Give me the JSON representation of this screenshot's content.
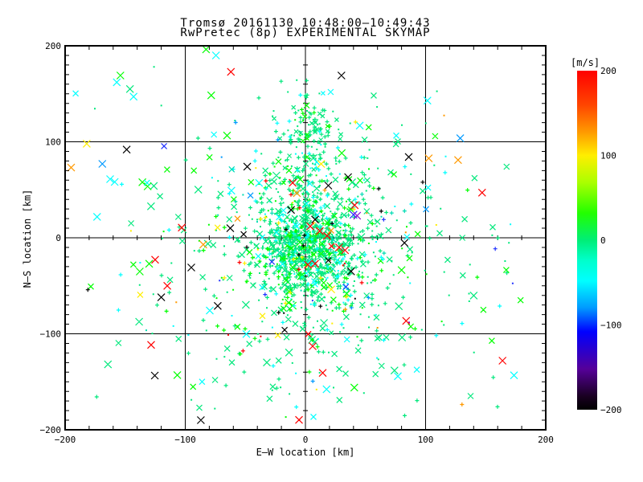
{
  "chart_data": {
    "type": "scatter",
    "title": "Tromsø 20161130 10:48:00–10:49:43",
    "subtitle": "RwPretec (8p) EXPERIMENTAL SKYMAP",
    "xlabel": "E–W location [km]",
    "ylabel": "N–S location [km]",
    "xlim": [
      -200,
      200
    ],
    "ylim": [
      -200,
      200
    ],
    "xticks": [
      -200,
      -100,
      0,
      100,
      200
    ],
    "yticks": [
      -200,
      -100,
      0,
      100,
      200
    ],
    "grid": [
      -100,
      0,
      100
    ],
    "axes_through_origin": true,
    "frame_color": "#000000",
    "background": "#ffffff",
    "colorbar": {
      "title": "[m/s]",
      "min": -200,
      "max": 200,
      "ticks": [
        200,
        100,
        0,
        -100,
        -200
      ],
      "stops": [
        [
          0.0,
          "#ff0000"
        ],
        [
          0.1,
          "#ff4400"
        ],
        [
          0.18,
          "#ff9900"
        ],
        [
          0.25,
          "#ffee00"
        ],
        [
          0.33,
          "#aaff00"
        ],
        [
          0.42,
          "#22ff00"
        ],
        [
          0.5,
          "#00ee77"
        ],
        [
          0.56,
          "#00ffcc"
        ],
        [
          0.62,
          "#00ffff"
        ],
        [
          0.7,
          "#0099ff"
        ],
        [
          0.77,
          "#0000ff"
        ],
        [
          0.88,
          "#550099"
        ],
        [
          0.96,
          "#1a0022"
        ],
        [
          1.0,
          "#000000"
        ]
      ]
    },
    "palette": {
      "spring": "#00e87c",
      "green": "#00ff00",
      "cyan": "#00ffff",
      "teal": "#00dcb4",
      "yellow": "#ffee00",
      "orange": "#ff9900",
      "red": "#ff0000",
      "blue": "#2233ff",
      "lblue": "#0099ff",
      "purple": "#8800cc",
      "black": "#000000"
    },
    "seed": 20161130,
    "clusters": [
      {
        "n": 850,
        "cx": 2,
        "cy": -10,
        "sx": 22,
        "sy": 26,
        "xsize": 7,
        "markers": {
          "plus": 0.45,
          "dot": 0.45,
          "x": 0.1
        },
        "colors": {
          "spring": 0.72,
          "green": 0.12,
          "cyan": 0.1,
          "teal": 0.03,
          "yellow": 0.01,
          "orange": 0.005,
          "red": 0.005,
          "lblue": 0.005,
          "black": 0.005
        }
      },
      {
        "n": 480,
        "cx": 5,
        "cy": -15,
        "sx": 55,
        "sy": 62,
        "xsize": 7,
        "markers": {
          "plus": 0.4,
          "dot": 0.4,
          "x": 0.2
        },
        "colors": {
          "spring": 0.6,
          "green": 0.15,
          "cyan": 0.15,
          "teal": 0.03,
          "yellow": 0.02,
          "orange": 0.01,
          "red": 0.01,
          "lblue": 0.01,
          "blue": 0.01,
          "black": 0.01
        }
      },
      {
        "n": 200,
        "cx": 0,
        "cy": -5,
        "sx": 115,
        "sy": 108,
        "xsize": 7,
        "markers": {
          "plus": 0.35,
          "dot": 0.25,
          "x": 0.4
        },
        "colors": {
          "spring": 0.45,
          "green": 0.2,
          "cyan": 0.18,
          "yellow": 0.04,
          "orange": 0.03,
          "red": 0.03,
          "blue": 0.02,
          "lblue": 0.02,
          "black": 0.02,
          "purple": 0.01
        }
      },
      {
        "n": 200,
        "cx": -2,
        "cy": 45,
        "sx": 11,
        "sy": 55,
        "xsize": 5,
        "markers": {
          "plus": 0.5,
          "dot": 0.4,
          "x": 0.1
        },
        "colors": {
          "spring": 0.8,
          "green": 0.1,
          "cyan": 0.1
        }
      },
      {
        "n": 70,
        "cx": 6,
        "cy": 112,
        "sx": 13,
        "sy": 12,
        "xsize": 5,
        "markers": {
          "plus": 0.5,
          "dot": 0.3,
          "x": 0.2
        },
        "colors": {
          "spring": 0.75,
          "green": 0.12,
          "cyan": 0.13
        }
      },
      {
        "n": 85,
        "cx": 0,
        "cy": -10,
        "sx": 120,
        "sy": 110,
        "xsize": 9,
        "markers": {
          "x": 1.0
        },
        "colors": {
          "spring": 0.28,
          "green": 0.22,
          "cyan": 0.22,
          "red": 0.07,
          "black": 0.07,
          "orange": 0.04,
          "yellow": 0.04,
          "blue": 0.03,
          "lblue": 0.02,
          "purple": 0.01
        }
      }
    ],
    "notable_points": [
      [
        164,
        -128,
        "red"
      ],
      [
        -115,
        -50,
        "red"
      ],
      [
        -120,
        -62,
        "black"
      ],
      [
        -95,
        -31,
        "black"
      ],
      [
        -73,
        -71,
        "black"
      ],
      [
        -85,
        -7,
        "orange"
      ],
      [
        -130,
        -27,
        "green"
      ],
      [
        -154,
        169,
        "green"
      ],
      [
        -157,
        162,
        "cyan"
      ],
      [
        -146,
        155,
        "spring"
      ],
      [
        -143,
        147,
        "cyan"
      ],
      [
        -182,
        98,
        "yellow"
      ],
      [
        -169,
        77,
        "lblue"
      ],
      [
        30,
        169,
        "black"
      ],
      [
        127,
        81,
        "orange"
      ],
      [
        147,
        47,
        "red"
      ],
      [
        6,
        -113,
        "red"
      ],
      [
        -87,
        -190,
        "black"
      ],
      [
        41,
        34,
        "red"
      ],
      [
        40,
        24,
        "blue"
      ],
      [
        43,
        23,
        "purple"
      ],
      [
        28,
        -10,
        "red"
      ],
      [
        33,
        -13,
        "red"
      ],
      [
        18,
        2,
        "red"
      ],
      [
        12,
        7,
        "red"
      ],
      [
        4,
        12,
        "red"
      ],
      [
        -12,
        29,
        "black"
      ],
      [
        8,
        19,
        "black"
      ],
      [
        38,
        -35,
        "black"
      ],
      [
        2,
        -28,
        "red"
      ],
      [
        8,
        -27,
        "red"
      ]
    ]
  }
}
